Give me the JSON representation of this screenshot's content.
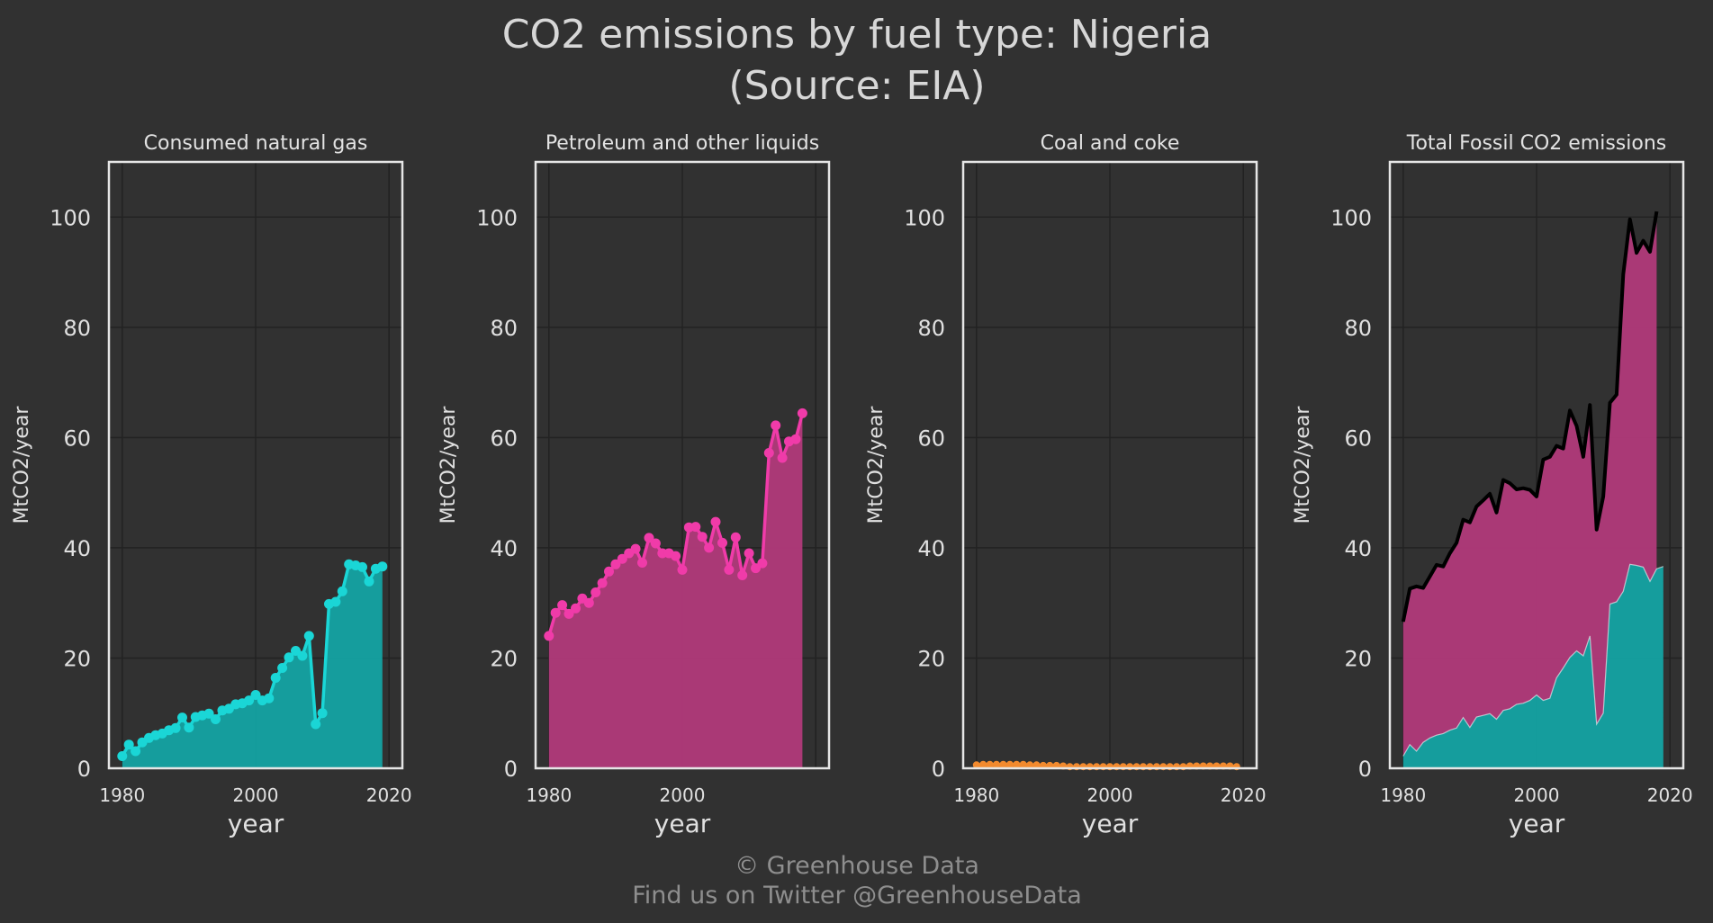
{
  "title": "CO2 emissions by fuel type: Nigeria",
  "title_line2": "(Source: EIA)",
  "footer": {
    "line1": "© Greenhouse Data",
    "line2": "Find us on Twitter @GreenhouseData"
  },
  "colors": {
    "background": "#313131",
    "gas_line": "#1ad6d6",
    "gas_fill": "#14a3a3",
    "oil_line": "#f03ba9",
    "oil_fill": "#b13a7a",
    "coal_line": "#f28a2e",
    "total_line": "#000000"
  },
  "chart_data": [
    {
      "type": "area",
      "title": "Consumed natural gas",
      "xlabel": "year",
      "ylabel": "MtCO2/year",
      "xlim": [
        1978,
        2022
      ],
      "ylim": [
        0,
        110
      ],
      "xticks": [
        "1980",
        "2000",
        "2020"
      ],
      "yticks": [
        "0",
        "20",
        "40",
        "60",
        "80",
        "100"
      ],
      "grid": true,
      "markers": true,
      "series": [
        {
          "name": "Consumed natural gas",
          "x": [
            1980,
            1981,
            1982,
            1983,
            1984,
            1985,
            1986,
            1987,
            1988,
            1989,
            1990,
            1991,
            1992,
            1993,
            1994,
            1995,
            1996,
            1997,
            1998,
            1999,
            2000,
            2001,
            2002,
            2003,
            2004,
            2005,
            2006,
            2007,
            2008,
            2009,
            2010,
            2011,
            2012,
            2013,
            2014,
            2015,
            2016,
            2017,
            2018,
            2019
          ],
          "values": [
            2.2,
            4.3,
            3.1,
            4.7,
            5.5,
            6.0,
            6.3,
            6.9,
            7.3,
            9.2,
            7.4,
            9.3,
            9.6,
            9.9,
            8.9,
            10.5,
            10.8,
            11.6,
            11.8,
            12.3,
            13.3,
            12.3,
            12.7,
            16.4,
            18.2,
            20.1,
            21.3,
            20.4,
            24.0,
            8.0,
            10.0,
            29.8,
            30.2,
            32.1,
            37.0,
            36.8,
            36.5,
            33.9,
            36.2,
            36.6
          ]
        }
      ]
    },
    {
      "type": "area",
      "title": "Petroleum and other liquids",
      "xlabel": "year",
      "ylabel": "MtCO2/year",
      "xlim": [
        1978,
        2022
      ],
      "ylim": [
        0,
        110
      ],
      "xticks": [
        "1980",
        "2000"
      ],
      "yticks": [
        "0",
        "20",
        "40",
        "60",
        "80",
        "100"
      ],
      "grid": true,
      "markers": true,
      "series": [
        {
          "name": "Petroleum and other liquids",
          "x": [
            1980,
            1981,
            1982,
            1983,
            1984,
            1985,
            1986,
            1987,
            1988,
            1989,
            1990,
            1991,
            1992,
            1993,
            1994,
            1995,
            1996,
            1997,
            1998,
            1999,
            2000,
            2001,
            2002,
            2003,
            2004,
            2005,
            2006,
            2007,
            2008,
            2009,
            2010,
            2011,
            2012,
            2013,
            2014,
            2015,
            2016,
            2017,
            2018
          ],
          "values": [
            24.0,
            28.2,
            29.6,
            28.0,
            29.0,
            30.8,
            30.0,
            31.9,
            33.6,
            35.7,
            37.0,
            38.0,
            39.0,
            39.8,
            37.3,
            41.8,
            40.8,
            39.0,
            39.0,
            38.5,
            36.0,
            43.7,
            43.8,
            42.0,
            40.0,
            44.7,
            40.9,
            36.0,
            41.9,
            35.0,
            39.0,
            36.3,
            37.2,
            57.2,
            62.2,
            56.3,
            59.3,
            59.7,
            64.4
          ]
        }
      ]
    },
    {
      "type": "area",
      "title": "Coal and coke",
      "xlabel": "year",
      "ylabel": "MtCO2/year",
      "xlim": [
        1978,
        2022
      ],
      "ylim": [
        0,
        110
      ],
      "xticks": [
        "1980",
        "2000",
        "2020"
      ],
      "yticks": [
        "0",
        "20",
        "40",
        "60",
        "80",
        "100"
      ],
      "grid": true,
      "markers": true,
      "series": [
        {
          "name": "Coal and coke",
          "x": [
            1980,
            1981,
            1982,
            1983,
            1984,
            1985,
            1986,
            1987,
            1988,
            1989,
            1990,
            1991,
            1992,
            1993,
            1994,
            1995,
            1996,
            1997,
            1998,
            1999,
            2000,
            2001,
            2002,
            2003,
            2004,
            2005,
            2006,
            2007,
            2008,
            2009,
            2010,
            2011,
            2012,
            2013,
            2014,
            2015,
            2016,
            2017,
            2018,
            2019
          ],
          "values": [
            0.6,
            0.7,
            0.7,
            0.7,
            0.7,
            0.7,
            0.7,
            0.7,
            0.6,
            0.6,
            0.5,
            0.5,
            0.5,
            0.4,
            0.3,
            0.3,
            0.3,
            0.3,
            0.3,
            0.3,
            0.3,
            0.3,
            0.3,
            0.3,
            0.3,
            0.3,
            0.3,
            0.3,
            0.3,
            0.3,
            0.3,
            0.3,
            0.4,
            0.4,
            0.4,
            0.4,
            0.4,
            0.4,
            0.4,
            0.3
          ]
        }
      ]
    },
    {
      "type": "area",
      "title": "Total Fossil CO2 emissions",
      "xlabel": "year",
      "ylabel": "MtCO2/year",
      "xlim": [
        1978,
        2022
      ],
      "ylim": [
        0,
        110
      ],
      "xticks": [
        "1980",
        "2000",
        "2020"
      ],
      "yticks": [
        "0",
        "20",
        "40",
        "60",
        "80",
        "100"
      ],
      "grid": true,
      "stacked": true,
      "series": [
        {
          "name": "Consumed natural gas",
          "x": [
            1980,
            1981,
            1982,
            1983,
            1984,
            1985,
            1986,
            1987,
            1988,
            1989,
            1990,
            1991,
            1992,
            1993,
            1994,
            1995,
            1996,
            1997,
            1998,
            1999,
            2000,
            2001,
            2002,
            2003,
            2004,
            2005,
            2006,
            2007,
            2008,
            2009,
            2010,
            2011,
            2012,
            2013,
            2014,
            2015,
            2016,
            2017,
            2018,
            2019
          ],
          "values": [
            2.2,
            4.3,
            3.1,
            4.7,
            5.5,
            6.0,
            6.3,
            6.9,
            7.3,
            9.2,
            7.4,
            9.3,
            9.6,
            9.9,
            8.9,
            10.5,
            10.8,
            11.6,
            11.8,
            12.3,
            13.3,
            12.3,
            12.7,
            16.4,
            18.2,
            20.1,
            21.3,
            20.4,
            24.0,
            8.0,
            10.0,
            29.8,
            30.2,
            32.1,
            37.0,
            36.8,
            36.5,
            33.9,
            36.2,
            36.6
          ]
        },
        {
          "name": "Petroleum and other liquids",
          "x": [
            1980,
            1981,
            1982,
            1983,
            1984,
            1985,
            1986,
            1987,
            1988,
            1989,
            1990,
            1991,
            1992,
            1993,
            1994,
            1995,
            1996,
            1997,
            1998,
            1999,
            2000,
            2001,
            2002,
            2003,
            2004,
            2005,
            2006,
            2007,
            2008,
            2009,
            2010,
            2011,
            2012,
            2013,
            2014,
            2015,
            2016,
            2017,
            2018
          ],
          "values": [
            24.0,
            28.2,
            29.6,
            28.0,
            29.0,
            30.8,
            30.0,
            31.9,
            33.6,
            35.7,
            37.0,
            38.0,
            39.0,
            39.8,
            37.3,
            41.8,
            40.8,
            39.0,
            39.0,
            38.5,
            36.0,
            43.7,
            43.8,
            42.0,
            40.0,
            44.7,
            40.9,
            36.0,
            41.9,
            35.0,
            39.0,
            36.3,
            37.2,
            57.2,
            62.2,
            56.3,
            59.3,
            59.7,
            64.4
          ]
        },
        {
          "name": "Total Fossil CO2 emissions",
          "x": [
            1980,
            1981,
            1982,
            1983,
            1984,
            1985,
            1986,
            1987,
            1988,
            1989,
            1990,
            1991,
            1992,
            1993,
            1994,
            1995,
            1996,
            1997,
            1998,
            1999,
            2000,
            2001,
            2002,
            2003,
            2004,
            2005,
            2006,
            2007,
            2008,
            2009,
            2010,
            2011,
            2012,
            2013,
            2014,
            2015,
            2016,
            2017,
            2018
          ],
          "values": [
            26.6,
            32.6,
            33.0,
            32.7,
            34.8,
            36.9,
            36.6,
            39.0,
            40.9,
            45.1,
            44.6,
            47.5,
            48.6,
            49.8,
            46.4,
            52.3,
            51.7,
            50.6,
            50.8,
            50.5,
            49.3,
            56.0,
            56.5,
            58.5,
            58.0,
            64.9,
            62.1,
            56.5,
            65.9,
            43.3,
            49.3,
            66.3,
            67.8,
            89.6,
            99.6,
            93.5,
            95.7,
            93.7,
            101.0
          ]
        }
      ]
    }
  ]
}
